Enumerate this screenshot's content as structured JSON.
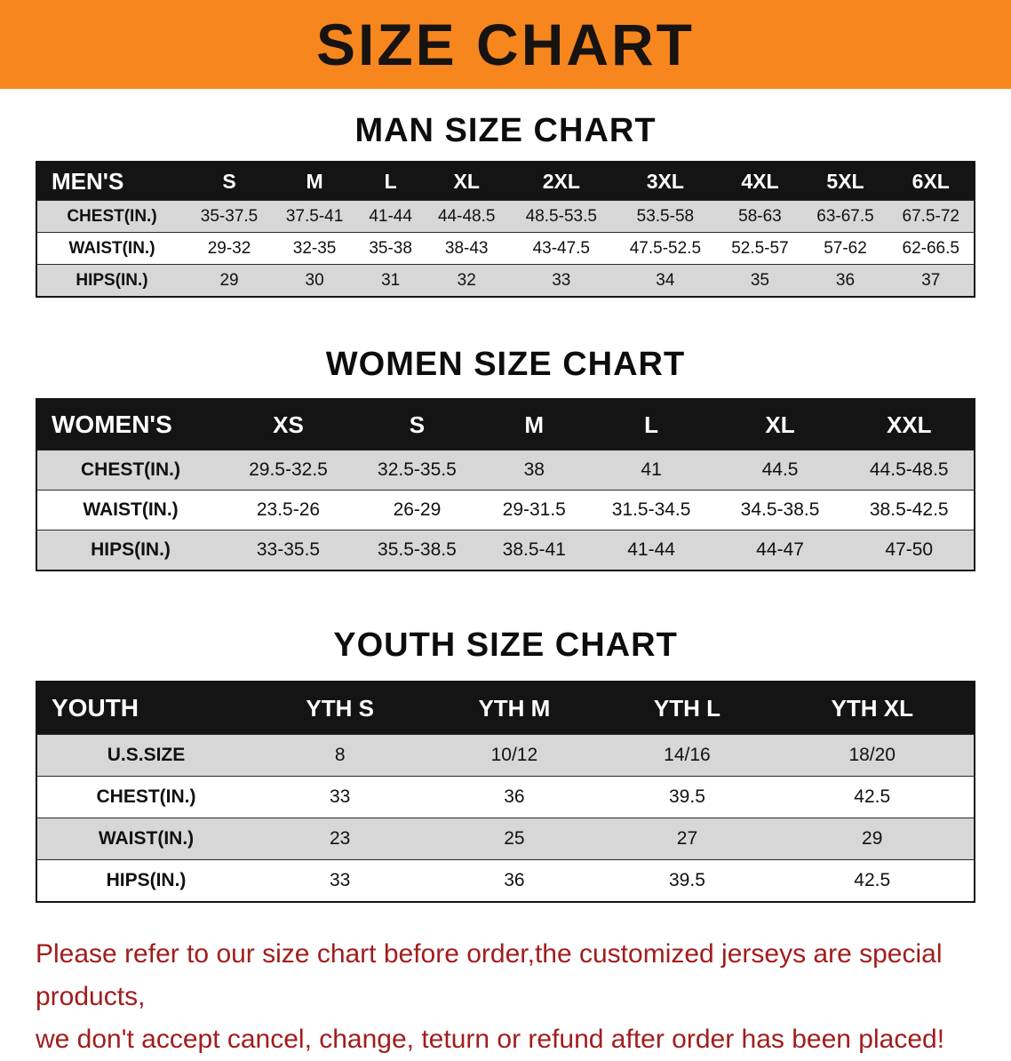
{
  "banner": {
    "title": "SIZE CHART",
    "background_color": "#f6861d",
    "text_color": "#161311"
  },
  "sections": [
    {
      "heading": "MAN SIZE CHART",
      "table": {
        "header": [
          "MEN'S",
          "S",
          "M",
          "L",
          "XL",
          "2XL",
          "3XL",
          "4XL",
          "5XL",
          "6XL"
        ],
        "rows": [
          [
            "CHEST(IN.)",
            "35-37.5",
            "37.5-41",
            "41-44",
            "44-48.5",
            "48.5-53.5",
            "53.5-58",
            "58-63",
            "63-67.5",
            "67.5-72"
          ],
          [
            "WAIST(IN.)",
            "29-32",
            "32-35",
            "35-38",
            "38-43",
            "43-47.5",
            "47.5-52.5",
            "52.5-57",
            "57-62",
            "62-66.5"
          ],
          [
            "HIPS(IN.)",
            "29",
            "30",
            "31",
            "32",
            "33",
            "34",
            "35",
            "36",
            "37"
          ]
        ]
      }
    },
    {
      "heading": "WOMEN SIZE CHART",
      "table": {
        "header": [
          "WOMEN'S",
          "XS",
          "S",
          "M",
          "L",
          "XL",
          "XXL"
        ],
        "rows": [
          [
            "CHEST(IN.)",
            "29.5-32.5",
            "32.5-35.5",
            "38",
            "41",
            "44.5",
            "44.5-48.5"
          ],
          [
            "WAIST(IN.)",
            "23.5-26",
            "26-29",
            "29-31.5",
            "31.5-34.5",
            "34.5-38.5",
            "38.5-42.5"
          ],
          [
            "HIPS(IN.)",
            "33-35.5",
            "35.5-38.5",
            "38.5-41",
            "41-44",
            "44-47",
            "47-50"
          ]
        ]
      }
    },
    {
      "heading": "YOUTH SIZE CHART",
      "table": {
        "header": [
          "YOUTH",
          "YTH S",
          "YTH M",
          "YTH L",
          "YTH XL"
        ],
        "rows": [
          [
            "U.S.SIZE",
            "8",
            "10/12",
            "14/16",
            "18/20"
          ],
          [
            "CHEST(IN.)",
            "33",
            "36",
            "39.5",
            "42.5"
          ],
          [
            "WAIST(IN.)",
            "23",
            "25",
            "27",
            "29"
          ],
          [
            "HIPS(IN.)",
            "33",
            "36",
            "39.5",
            "42.5"
          ]
        ]
      }
    }
  ],
  "footer": {
    "line1": "Please refer to our size chart before order,the customized jerseys are special products,",
    "line2": "we don't accept cancel, change, teturn or refund after order has been placed!",
    "text_color": "#a21d1d"
  }
}
